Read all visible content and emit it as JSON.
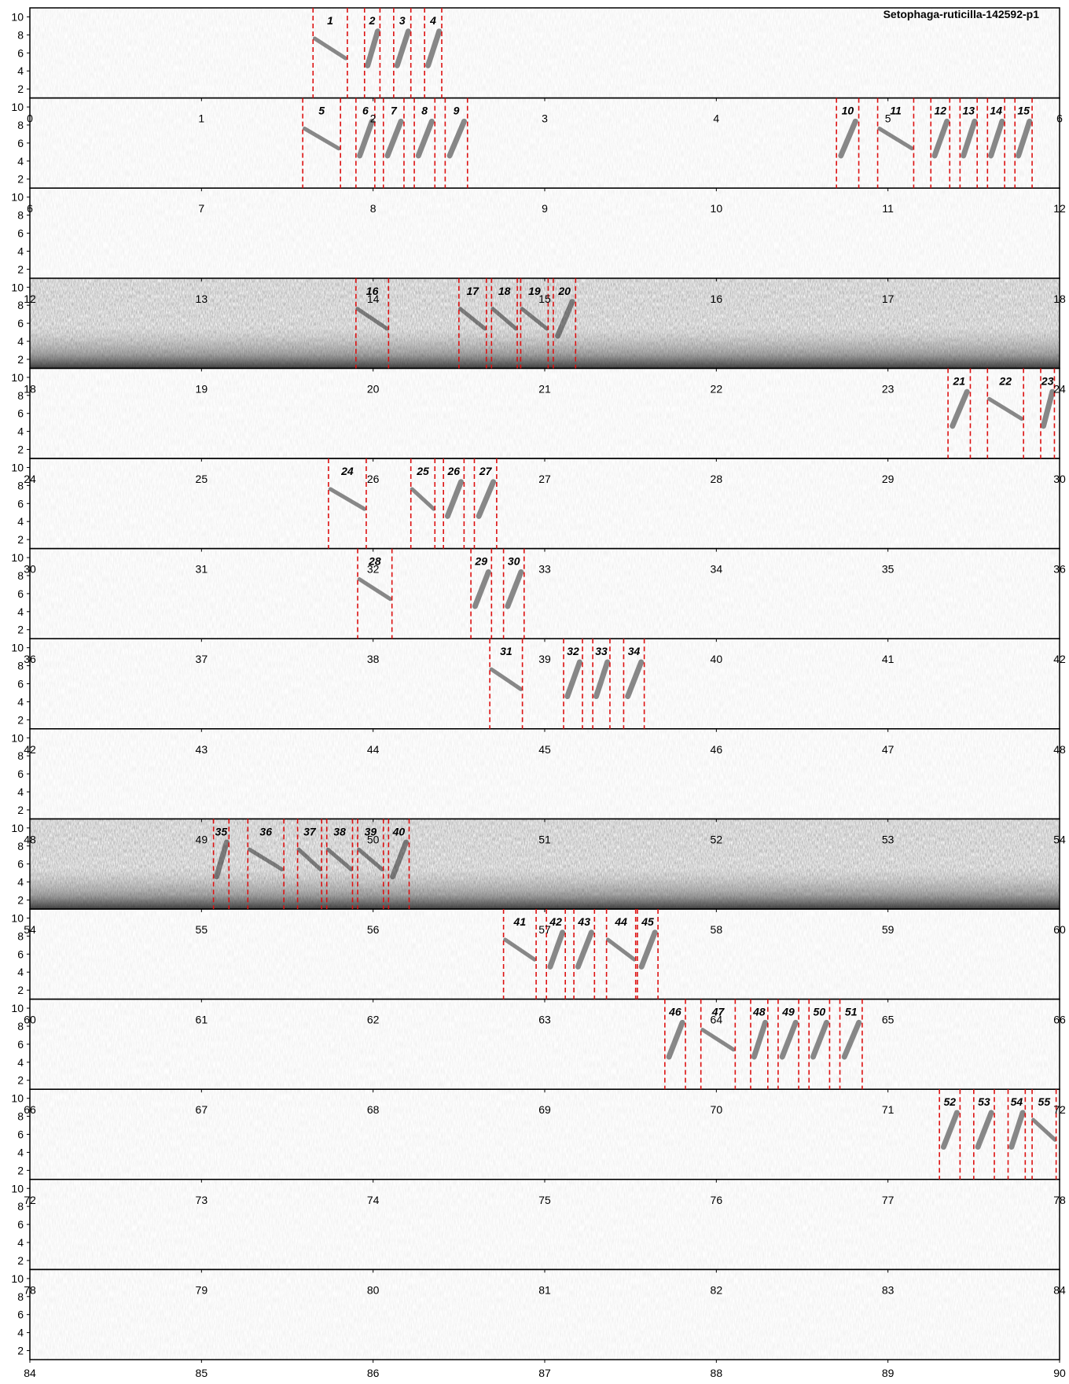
{
  "chart_data": {
    "type": "spectrogram",
    "title": "Setophaga-ruticilla-142592-p1",
    "rows_seconds_each": 6,
    "ylim": [
      1,
      11
    ],
    "yticks": [
      2,
      4,
      6,
      8,
      10
    ],
    "grid": false,
    "xtick_labels": [
      "0",
      "1",
      "2",
      "3",
      "4",
      "5",
      "6",
      "7",
      "8",
      "9",
      "10",
      "11",
      "12",
      "13",
      "14",
      "15",
      "16",
      "17",
      "18",
      "19",
      "20",
      "21",
      "22",
      "23",
      "24",
      "25",
      "26",
      "27",
      "28",
      "29",
      "30",
      "31",
      "32",
      "33",
      "34",
      "35",
      "36",
      "37",
      "38",
      "39",
      "40",
      "41",
      "42",
      "43",
      "44",
      "45",
      "46",
      "47",
      "48",
      "49",
      "50",
      "51",
      "52",
      "53",
      "54",
      "55",
      "56",
      "57",
      "58",
      "59",
      "60",
      "61",
      "62",
      "63",
      "64",
      "65",
      "66",
      "67",
      "68",
      "69",
      "70",
      "71",
      "72",
      "73",
      "74",
      "75",
      "76",
      "77",
      "78",
      "79",
      "80",
      "81",
      "82",
      "83",
      "84",
      "85",
      "86",
      "87",
      "88",
      "89",
      "90"
    ],
    "noisy_rows": [
      3,
      9
    ],
    "segments": [
      {
        "label": "1",
        "start": 1.65,
        "end": 1.85
      },
      {
        "label": "2",
        "start": 1.95,
        "end": 2.04
      },
      {
        "label": "3",
        "start": 2.12,
        "end": 2.22
      },
      {
        "label": "4",
        "start": 2.3,
        "end": 2.4
      },
      {
        "label": "5",
        "start": 7.59,
        "end": 7.81
      },
      {
        "label": "6",
        "start": 7.9,
        "end": 8.01
      },
      {
        "label": "7",
        "start": 8.06,
        "end": 8.18
      },
      {
        "label": "8",
        "start": 8.24,
        "end": 8.36
      },
      {
        "label": "9",
        "start": 8.42,
        "end": 8.55
      },
      {
        "label": "10",
        "start": 10.7,
        "end": 10.83
      },
      {
        "label": "11",
        "start": 10.94,
        "end": 11.15
      },
      {
        "label": "12",
        "start": 11.25,
        "end": 11.36
      },
      {
        "label": "13",
        "start": 11.42,
        "end": 11.52
      },
      {
        "label": "14",
        "start": 11.58,
        "end": 11.68
      },
      {
        "label": "15",
        "start": 11.74,
        "end": 11.84
      },
      {
        "label": "16",
        "start": 19.9,
        "end": 20.09
      },
      {
        "label": "17",
        "start": 20.5,
        "end": 20.66
      },
      {
        "label": "18",
        "start": 20.69,
        "end": 20.84
      },
      {
        "label": "19",
        "start": 20.86,
        "end": 21.02
      },
      {
        "label": "20",
        "start": 21.05,
        "end": 21.18
      },
      {
        "label": "21",
        "start": 29.35,
        "end": 29.48
      },
      {
        "label": "22",
        "start": 29.58,
        "end": 29.79
      },
      {
        "label": "23",
        "start": 29.89,
        "end": 29.97
      },
      {
        "label": "24",
        "start": 31.74,
        "end": 31.96
      },
      {
        "label": "25",
        "start": 32.22,
        "end": 32.36
      },
      {
        "label": "26",
        "start": 32.41,
        "end": 32.53
      },
      {
        "label": "27",
        "start": 32.59,
        "end": 32.72
      },
      {
        "label": "28",
        "start": 37.91,
        "end": 38.11
      },
      {
        "label": "29",
        "start": 38.57,
        "end": 38.69
      },
      {
        "label": "30",
        "start": 38.76,
        "end": 38.88
      },
      {
        "label": "31",
        "start": 44.68,
        "end": 44.87
      },
      {
        "label": "32",
        "start": 45.11,
        "end": 45.22
      },
      {
        "label": "33",
        "start": 45.28,
        "end": 45.38
      },
      {
        "label": "34",
        "start": 45.46,
        "end": 45.58
      },
      {
        "label": "35",
        "start": 55.07,
        "end": 55.16
      },
      {
        "label": "36",
        "start": 55.27,
        "end": 55.48
      },
      {
        "label": "37",
        "start": 55.56,
        "end": 55.7
      },
      {
        "label": "38",
        "start": 55.73,
        "end": 55.88
      },
      {
        "label": "39",
        "start": 55.91,
        "end": 56.06
      },
      {
        "label": "40",
        "start": 56.09,
        "end": 56.21
      },
      {
        "label": "41",
        "start": 62.76,
        "end": 62.95
      },
      {
        "label": "42",
        "start": 63.01,
        "end": 63.12
      },
      {
        "label": "43",
        "start": 63.17,
        "end": 63.29
      },
      {
        "label": "44",
        "start": 63.36,
        "end": 63.53
      },
      {
        "label": "45",
        "start": 63.54,
        "end": 63.66
      },
      {
        "label": "46",
        "start": 69.7,
        "end": 69.82
      },
      {
        "label": "47",
        "start": 69.91,
        "end": 70.11
      },
      {
        "label": "48",
        "start": 70.2,
        "end": 70.3
      },
      {
        "label": "49",
        "start": 70.36,
        "end": 70.48
      },
      {
        "label": "50",
        "start": 70.54,
        "end": 70.66
      },
      {
        "label": "51",
        "start": 70.72,
        "end": 70.85
      },
      {
        "label": "52",
        "start": 77.3,
        "end": 77.42
      },
      {
        "label": "53",
        "start": 77.5,
        "end": 77.62
      },
      {
        "label": "54",
        "start": 77.7,
        "end": 77.8
      },
      {
        "label": "55",
        "start": 77.84,
        "end": 77.98
      }
    ],
    "colors": {
      "boundary": "#dd1111",
      "ink": "#000000",
      "signal": "#2a2a2a",
      "background": "#ffffff"
    }
  }
}
